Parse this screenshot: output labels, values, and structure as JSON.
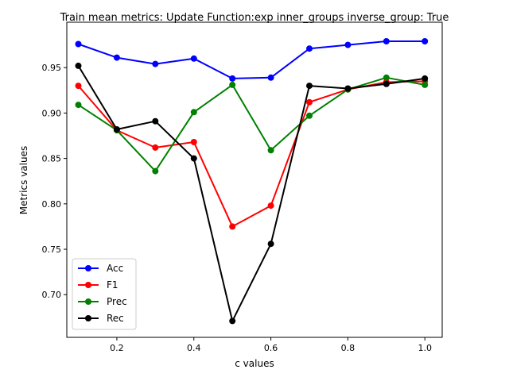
{
  "chart_data": {
    "type": "line",
    "title": "Train mean metrics: Update Function:exp inner_groups inverse_group: True",
    "xlabel": "c values",
    "ylabel": "Metrics values",
    "x": [
      0.1,
      0.2,
      0.3,
      0.4,
      0.5,
      0.6,
      0.7,
      0.8,
      0.9,
      1.0
    ],
    "xlim": [
      0.07,
      1.045
    ],
    "ylim": [
      0.653,
      1.0
    ],
    "xticks": [
      0.2,
      0.4,
      0.6,
      0.8,
      1.0
    ],
    "xtick_labels": [
      "0.2",
      "0.4",
      "0.6",
      "0.8",
      "1.0"
    ],
    "yticks": [
      0.7,
      0.75,
      0.8,
      0.85,
      0.9,
      0.95
    ],
    "ytick_labels": [
      "0.70",
      "0.75",
      "0.80",
      "0.85",
      "0.90",
      "0.95"
    ],
    "grid": false,
    "legend_position": "lower-left",
    "series": [
      {
        "name": "Acc",
        "color": "#0000ff",
        "values": [
          0.976,
          0.961,
          0.954,
          0.96,
          0.938,
          0.939,
          0.971,
          0.975,
          0.979,
          0.979
        ]
      },
      {
        "name": "F1",
        "color": "#ff0000",
        "values": [
          0.93,
          0.881,
          0.862,
          0.868,
          0.775,
          0.798,
          0.912,
          0.926,
          0.934,
          0.935
        ]
      },
      {
        "name": "Prec",
        "color": "#008000",
        "values": [
          0.909,
          0.881,
          0.836,
          0.901,
          0.931,
          0.859,
          0.897,
          0.926,
          0.939,
          0.931
        ]
      },
      {
        "name": "Rec",
        "color": "#000000",
        "values": [
          0.952,
          0.882,
          0.891,
          0.85,
          0.671,
          0.756,
          0.93,
          0.927,
          0.932,
          0.938
        ]
      }
    ]
  }
}
